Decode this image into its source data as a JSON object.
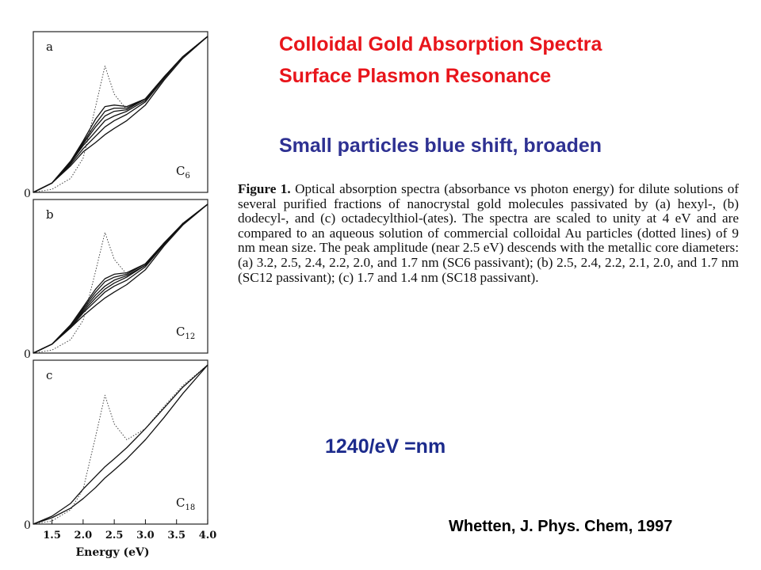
{
  "slide": {
    "title_line1": "Colloidal Gold Absorption Spectra",
    "title_line2": "Surface Plasmon Resonance",
    "subtitle": "Small particles blue shift, broaden",
    "formula": "1240/eV =nm",
    "citation": "Whetten, J. Phys. Chem, 1997",
    "title_color": "#e8151b",
    "subtitle_color": "#2e3192"
  },
  "caption": {
    "label": "Figure 1.",
    "text": "Optical absorption spectra (absorbance vs photon energy) for dilute solutions of several purified fractions of nanocrystal gold molecules passivated by (a) hexyl-, (b) dodecyl-, and (c) octadecylthiol-(ates). The spectra are scaled to unity at 4 eV and are compared to an aqueous solution of commercial colloidal Au particles (dotted lines) of 9 nm mean size. The peak amplitude (near 2.5 eV) descends with the metallic core diameters: (a) 3.2, 2.5, 2.4, 2.2, 2.0, and 1.7 nm (SC6 passivant); (b) 2.5, 2.4, 2.2, 2.1, 2.0, and 1.7 nm (SC12 passivant); (c) 1.7 and 1.4 nm (SC18 passivant)."
  },
  "chart_data": [
    {
      "type": "line",
      "panel": "a",
      "panel_label": "C6",
      "y_zero_label": "0",
      "xlim": [
        1.2,
        4.0
      ],
      "x": [
        1.2,
        1.5,
        1.8,
        2.0,
        2.2,
        2.35,
        2.5,
        2.7,
        3.0,
        3.3,
        3.6,
        4.0
      ],
      "series": [
        {
          "style": "dotted",
          "values": [
            0.0,
            0.02,
            0.09,
            0.22,
            0.55,
            0.81,
            0.63,
            0.53,
            0.6,
            0.74,
            0.87,
            1.0
          ]
        },
        {
          "style": "solid",
          "values": [
            0.0,
            0.06,
            0.2,
            0.33,
            0.47,
            0.55,
            0.56,
            0.55,
            0.6,
            0.74,
            0.87,
            1.0
          ]
        },
        {
          "style": "solid",
          "values": [
            0.0,
            0.06,
            0.2,
            0.32,
            0.44,
            0.52,
            0.54,
            0.54,
            0.6,
            0.74,
            0.87,
            1.0
          ]
        },
        {
          "style": "solid",
          "values": [
            0.0,
            0.06,
            0.19,
            0.31,
            0.42,
            0.49,
            0.52,
            0.53,
            0.6,
            0.74,
            0.87,
            1.0
          ]
        },
        {
          "style": "solid",
          "values": [
            0.0,
            0.06,
            0.19,
            0.3,
            0.39,
            0.46,
            0.49,
            0.52,
            0.59,
            0.74,
            0.87,
            1.0
          ]
        },
        {
          "style": "solid",
          "values": [
            0.0,
            0.06,
            0.18,
            0.28,
            0.36,
            0.42,
            0.46,
            0.5,
            0.58,
            0.73,
            0.87,
            1.0
          ]
        },
        {
          "style": "solid",
          "values": [
            0.0,
            0.06,
            0.17,
            0.26,
            0.32,
            0.37,
            0.41,
            0.46,
            0.56,
            0.72,
            0.86,
            1.0
          ]
        }
      ]
    },
    {
      "type": "line",
      "panel": "b",
      "panel_label": "C12",
      "y_zero_label": "0",
      "xlim": [
        1.2,
        4.0
      ],
      "x": [
        1.2,
        1.5,
        1.8,
        2.0,
        2.2,
        2.35,
        2.5,
        2.7,
        3.0,
        3.3,
        3.6,
        4.0
      ],
      "series": [
        {
          "style": "dotted",
          "values": [
            0.0,
            0.02,
            0.09,
            0.22,
            0.55,
            0.81,
            0.63,
            0.53,
            0.6,
            0.74,
            0.87,
            1.0
          ]
        },
        {
          "style": "solid",
          "values": [
            0.0,
            0.06,
            0.19,
            0.31,
            0.43,
            0.5,
            0.53,
            0.54,
            0.6,
            0.74,
            0.87,
            1.0
          ]
        },
        {
          "style": "solid",
          "values": [
            0.0,
            0.06,
            0.19,
            0.3,
            0.41,
            0.48,
            0.51,
            0.53,
            0.6,
            0.74,
            0.87,
            1.0
          ]
        },
        {
          "style": "solid",
          "values": [
            0.0,
            0.06,
            0.18,
            0.29,
            0.39,
            0.45,
            0.49,
            0.52,
            0.59,
            0.74,
            0.87,
            1.0
          ]
        },
        {
          "style": "solid",
          "values": [
            0.0,
            0.06,
            0.18,
            0.28,
            0.37,
            0.43,
            0.47,
            0.51,
            0.59,
            0.73,
            0.87,
            1.0
          ]
        },
        {
          "style": "solid",
          "values": [
            0.0,
            0.06,
            0.17,
            0.27,
            0.35,
            0.41,
            0.45,
            0.49,
            0.58,
            0.73,
            0.87,
            1.0
          ]
        },
        {
          "style": "solid",
          "values": [
            0.0,
            0.06,
            0.17,
            0.25,
            0.32,
            0.37,
            0.41,
            0.46,
            0.56,
            0.72,
            0.86,
            1.0
          ]
        }
      ]
    },
    {
      "type": "line",
      "panel": "c",
      "panel_label": "C18",
      "y_zero_label": "0",
      "xlim": [
        1.2,
        4.0
      ],
      "xlabel": "Energy (eV)",
      "xticks": [
        "1.5",
        "2.0",
        "2.5",
        "3.0",
        "3.5",
        "4.0"
      ],
      "x": [
        1.2,
        1.5,
        1.8,
        2.0,
        2.2,
        2.35,
        2.5,
        2.7,
        3.0,
        3.3,
        3.6,
        4.0
      ],
      "series": [
        {
          "style": "dotted",
          "values": [
            0.0,
            0.02,
            0.09,
            0.22,
            0.55,
            0.81,
            0.63,
            0.53,
            0.6,
            0.74,
            0.87,
            1.0
          ]
        },
        {
          "style": "solid",
          "values": [
            0.0,
            0.05,
            0.13,
            0.22,
            0.3,
            0.36,
            0.41,
            0.48,
            0.6,
            0.73,
            0.86,
            1.0
          ]
        },
        {
          "style": "solid",
          "values": [
            0.0,
            0.04,
            0.1,
            0.16,
            0.23,
            0.29,
            0.34,
            0.41,
            0.53,
            0.67,
            0.82,
            1.0
          ]
        }
      ]
    }
  ]
}
